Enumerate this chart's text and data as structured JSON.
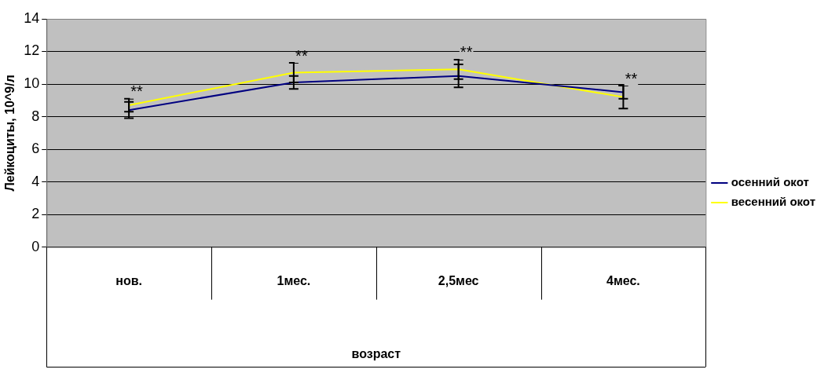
{
  "chart_data": {
    "type": "line",
    "xlabel": "возраст",
    "ylabel": "Лейкоциты, 10^9/л",
    "categories": [
      "нов.",
      "1мес.",
      "2,5мес",
      "4мес."
    ],
    "series": [
      {
        "name": "осенний окот",
        "color": "#000080",
        "values": [
          8.4,
          10.1,
          10.5,
          9.5
        ],
        "errors": [
          0.5,
          0.4,
          0.7,
          0.4
        ]
      },
      {
        "name": "весенний окот",
        "color": "#ffff00",
        "values": [
          8.7,
          10.7,
          10.9,
          9.2
        ],
        "errors": [
          0.4,
          0.6,
          0.6,
          0.7
        ]
      }
    ],
    "ylim": [
      0,
      14
    ],
    "yticks": [
      0,
      2,
      4,
      6,
      8,
      10,
      12,
      14
    ],
    "grid": "y",
    "legend": "right",
    "annotations": [
      "**",
      "**",
      "**",
      "**"
    ]
  }
}
